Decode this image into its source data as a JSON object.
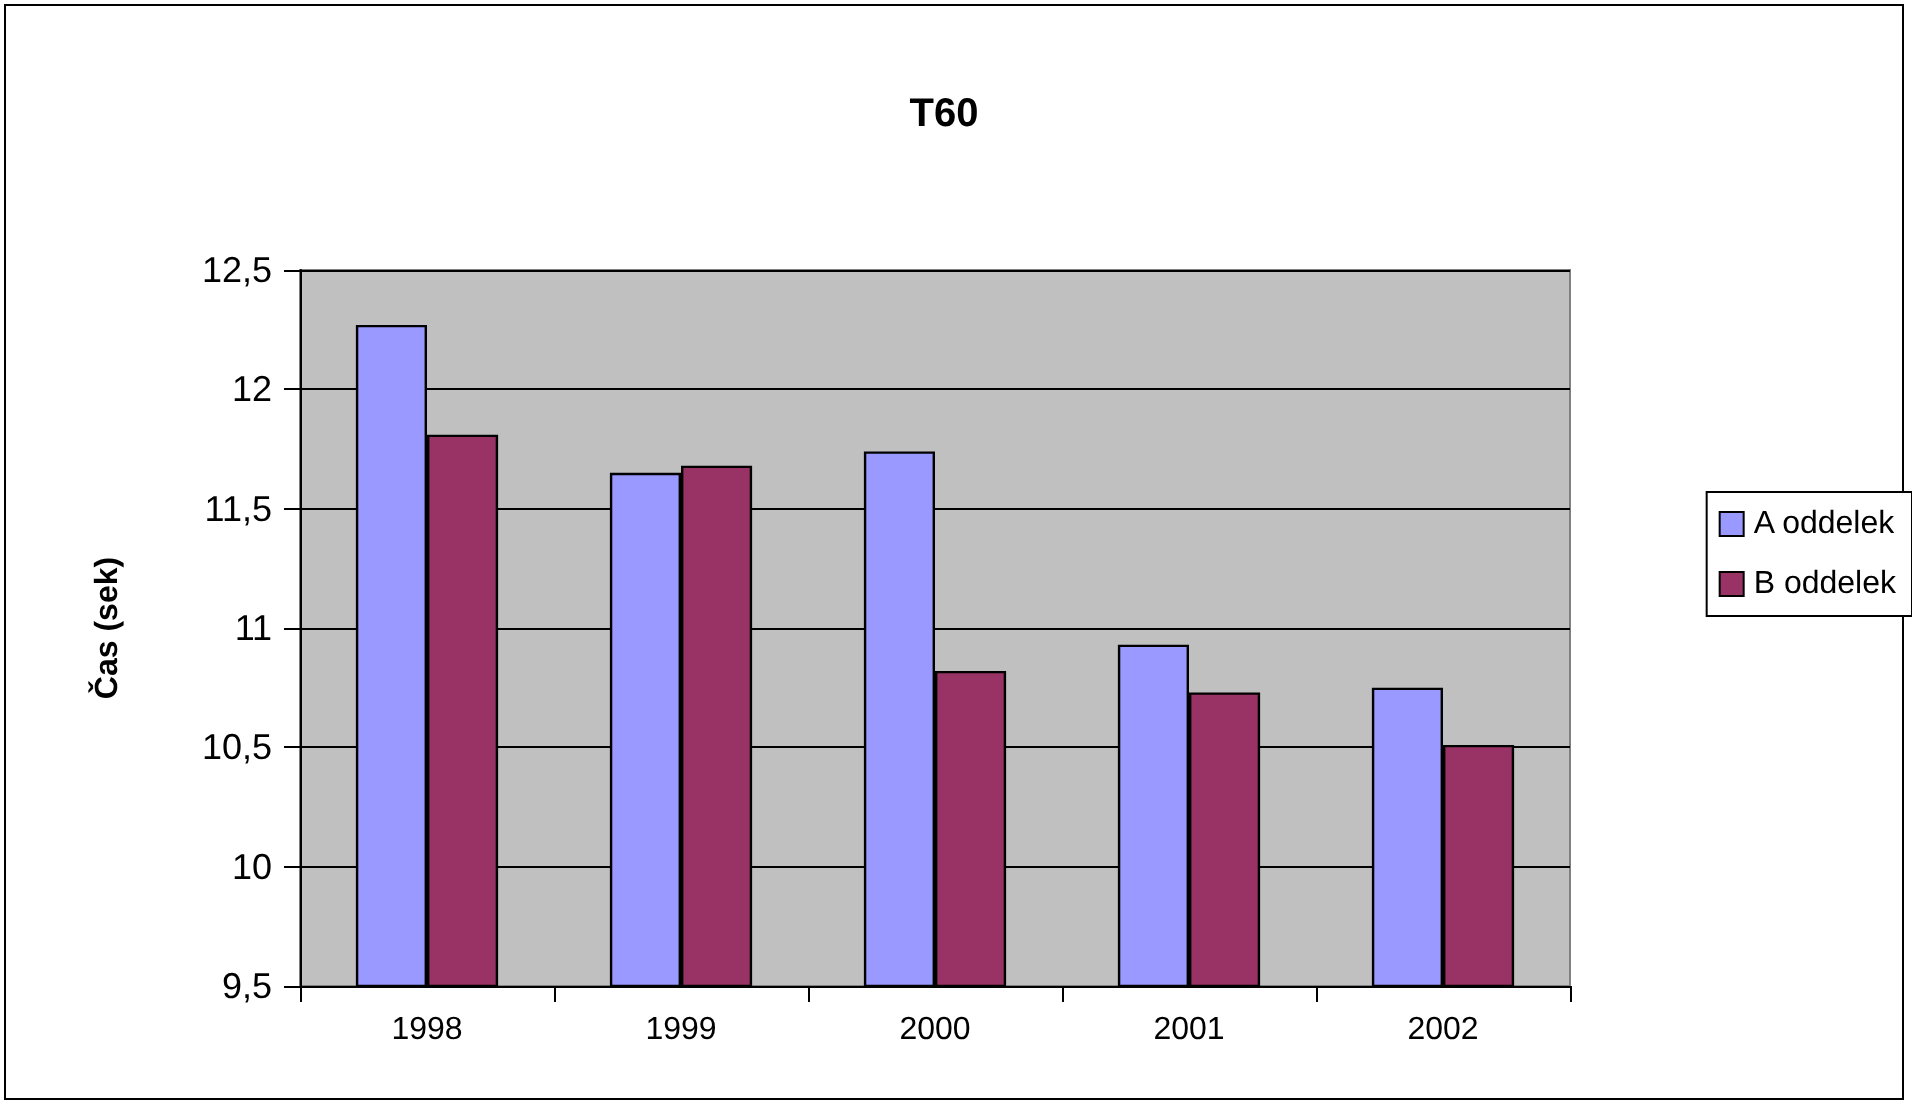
{
  "chart_data": {
    "type": "bar",
    "title": "T60",
    "ylabel": "Čas (sek)",
    "categories": [
      "1998",
      "1999",
      "2000",
      "2001",
      "2002"
    ],
    "series": [
      {
        "name": "A oddelek",
        "color": "#9999ff",
        "values": [
          12.27,
          11.65,
          11.74,
          10.93,
          10.75
        ]
      },
      {
        "name": "B oddelek",
        "color": "#993366",
        "values": [
          11.81,
          11.68,
          10.82,
          10.73,
          10.51
        ]
      }
    ],
    "ylim": [
      9.5,
      12.5
    ],
    "yticks": [
      {
        "value": 9.5,
        "label": "9,5"
      },
      10,
      {
        "value": 10.5,
        "label": "10,5"
      },
      11,
      {
        "value": 11.5,
        "label": "11,5"
      },
      12,
      {
        "value": 12.5,
        "label": "12,5"
      }
    ],
    "grid": "y",
    "legend": "right"
  }
}
